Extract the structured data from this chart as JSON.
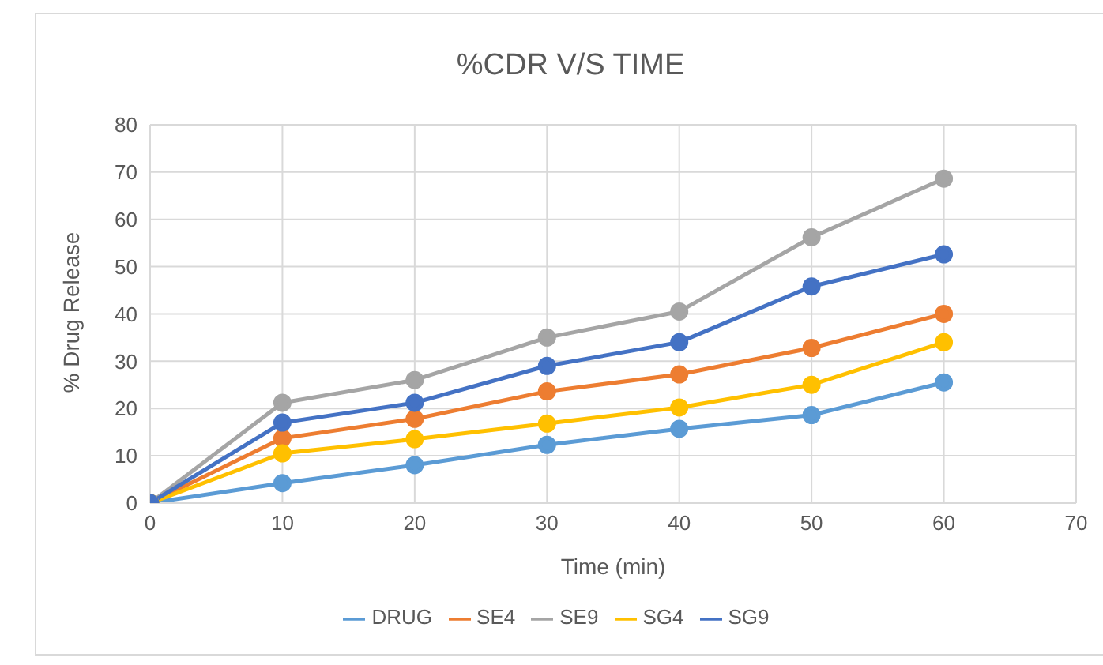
{
  "chart_data": {
    "type": "line",
    "title": "%CDR V/S TIME",
    "xlabel": "Time (min)",
    "ylabel": "% Drug Release",
    "x": [
      0,
      10,
      20,
      30,
      40,
      50,
      60
    ],
    "xlim": [
      0,
      70
    ],
    "xticks": [
      0,
      10,
      20,
      30,
      40,
      50,
      60,
      70
    ],
    "ylim": [
      0,
      80
    ],
    "yticks": [
      0,
      10,
      20,
      30,
      40,
      50,
      60,
      70,
      80
    ],
    "grid": true,
    "legend": "bottom",
    "marker": "circle",
    "line_style": "solid",
    "series": [
      {
        "name": "DRUG",
        "color": "#5b9bd5",
        "values": [
          0,
          4.2,
          8,
          12.3,
          15.7,
          18.6,
          25.5
        ]
      },
      {
        "name": "SE4",
        "color": "#ed7d31",
        "values": [
          0,
          13.7,
          17.8,
          23.6,
          27.2,
          32.8,
          40
        ]
      },
      {
        "name": "SE9",
        "color": "#a5a5a5",
        "values": [
          0,
          21.2,
          26,
          35,
          40.5,
          56.2,
          68.6
        ]
      },
      {
        "name": "SG4",
        "color": "#ffc000",
        "values": [
          0,
          10.5,
          13.5,
          16.8,
          20.2,
          25,
          34
        ]
      },
      {
        "name": "SG9",
        "color": "#4472c4",
        "values": [
          0,
          17,
          21.2,
          29,
          34,
          45.8,
          52.6
        ]
      }
    ]
  }
}
